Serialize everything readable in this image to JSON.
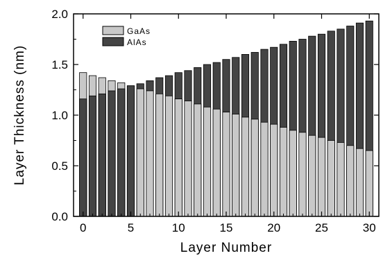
{
  "chart_data": {
    "type": "bar",
    "title": "",
    "xlabel": "Layer Number",
    "ylabel": "Layer Thickness (nm)",
    "xlim": [
      -1,
      31
    ],
    "ylim": [
      0.0,
      2.0
    ],
    "x_ticks": [
      0,
      5,
      10,
      15,
      20,
      25,
      30
    ],
    "y_ticks": [
      "0.0",
      "0.5",
      "1.0",
      "1.5",
      "2.0"
    ],
    "legend_position": "top-left",
    "grid": false,
    "bar_mode": "overlapping",
    "x": [
      0,
      1,
      2,
      3,
      4,
      5,
      6,
      7,
      8,
      9,
      10,
      11,
      12,
      13,
      14,
      15,
      16,
      17,
      18,
      19,
      20,
      21,
      22,
      23,
      24,
      25,
      26,
      27,
      28,
      29,
      30
    ],
    "series": [
      {
        "name": "GaAs",
        "color": "#c8c8c8",
        "values": [
          1.42,
          1.39,
          1.37,
          1.34,
          1.32,
          1.29,
          1.26,
          1.24,
          1.21,
          1.19,
          1.16,
          1.14,
          1.11,
          1.08,
          1.06,
          1.03,
          1.01,
          0.98,
          0.96,
          0.93,
          0.91,
          0.88,
          0.85,
          0.83,
          0.8,
          0.78,
          0.75,
          0.73,
          0.7,
          0.67,
          0.65
        ]
      },
      {
        "name": "AlAs",
        "color": "#444444",
        "values": [
          1.16,
          1.19,
          1.21,
          1.24,
          1.26,
          1.29,
          1.31,
          1.34,
          1.37,
          1.39,
          1.42,
          1.44,
          1.47,
          1.5,
          1.52,
          1.55,
          1.57,
          1.6,
          1.62,
          1.65,
          1.67,
          1.7,
          1.73,
          1.75,
          1.78,
          1.8,
          1.83,
          1.85,
          1.88,
          1.91,
          1.93
        ]
      }
    ]
  }
}
